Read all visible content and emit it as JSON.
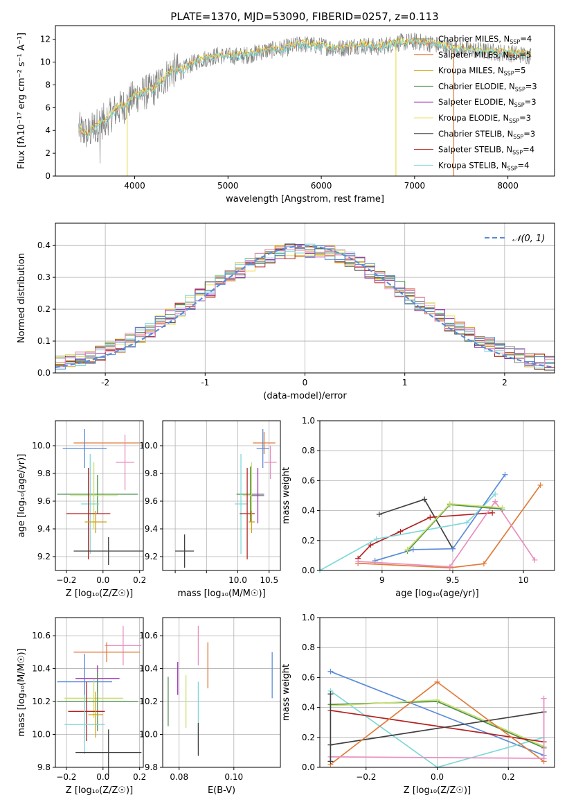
{
  "title": "PLATE=1370, MJD=53090, FIBERID=0257, z=0.113",
  "colors": {
    "chabrier_miles": "#808080",
    "salpeter_miles": "#e07b39",
    "kroupa_miles": "#d4a017",
    "chabrier_elodie": "#4f8f4f",
    "salpeter_elodie": "#9b30b0",
    "kroupa_elodie": "#e8e05a",
    "chabrier_stelib": "#404040",
    "salpeter_stelib": "#b22222",
    "kroupa_stelib": "#7fd8d8",
    "blue_model": "#5b8bd9",
    "pink_model": "#e88fc0",
    "yellowgreen_model": "#c8e06a",
    "normal_curve": "#5b8bd9"
  },
  "chart_data": [
    {
      "id": "spectrum",
      "type": "line",
      "title": "PLATE=1370, MJD=53090, FIBERID=0257, z=0.113",
      "xlabel": "wavelength [Angstrom, rest frame]",
      "ylabel": "Flux [fλ10⁻¹⁷ erg cm⁻² s⁻¹ A⁻¹]",
      "xlim": [
        3150,
        8500
      ],
      "ylim": [
        0,
        13.2
      ],
      "xticks": [
        4000,
        5000,
        6000,
        7000,
        8000
      ],
      "yticks": [
        0,
        2,
        4,
        6,
        8,
        10,
        12
      ],
      "continuum": {
        "x": [
          3400,
          3500,
          3600,
          3700,
          3800,
          3900,
          4000,
          4100,
          4200,
          4300,
          4400,
          4500,
          4600,
          4700,
          4800,
          4900,
          5000,
          5200,
          5400,
          5600,
          5800,
          6000,
          6200,
          6400,
          6600,
          6800,
          7000,
          7200,
          7400,
          7600,
          7800,
          8000,
          8200
        ],
        "y": [
          4.1,
          3.7,
          4.5,
          5.0,
          5.8,
          6.2,
          7.0,
          7.3,
          7.6,
          8.4,
          9.3,
          9.2,
          9.8,
          10.2,
          10.4,
          10.6,
          10.5,
          10.6,
          11.0,
          11.2,
          11.6,
          11.4,
          11.2,
          11.5,
          11.3,
          11.7,
          11.8,
          11.6,
          11.2,
          11.1,
          10.9,
          10.8,
          10.6
        ]
      },
      "legend": {
        "placement": "right",
        "entries": [
          {
            "name": "Chabrier MILES, N",
            "sub": "SSP",
            "tail": "=4",
            "color": "#808080"
          },
          {
            "name": "Salpeter MILES, N",
            "sub": "SSP",
            "tail": "=5",
            "color": "#e07b39"
          },
          {
            "name": "Kroupa MILES, N",
            "sub": "SSP",
            "tail": "=5",
            "color": "#d4a017"
          },
          {
            "name": "Chabrier ELODIE, N",
            "sub": "SSP",
            "tail": "=3",
            "color": "#4f8f4f"
          },
          {
            "name": "Salpeter ELODIE, N",
            "sub": "SSP",
            "tail": "=3",
            "color": "#9b30b0"
          },
          {
            "name": "Kroupa ELODIE, N",
            "sub": "SSP",
            "tail": "=3",
            "color": "#e8e05a"
          },
          {
            "name": "Chabrier STELIB, N",
            "sub": "SSP",
            "tail": "=3",
            "color": "#404040"
          },
          {
            "name": "Salpeter STELIB, N",
            "sub": "SSP",
            "tail": "=4",
            "color": "#b22222"
          },
          {
            "name": "Kroupa STELIB, N",
            "sub": "SSP",
            "tail": "=4",
            "color": "#7fd8d8"
          }
        ]
      }
    },
    {
      "id": "residuals",
      "type": "line",
      "xlabel": "(data-model)/error",
      "ylabel": "Normed distribution",
      "xlim": [
        -2.5,
        2.5
      ],
      "ylim": [
        0,
        0.47
      ],
      "xticks": [
        -2,
        -1,
        0,
        1,
        2
      ],
      "yticks": [
        0.0,
        0.1,
        0.2,
        0.3,
        0.4
      ],
      "grid": true,
      "legend": {
        "placement": "top-right",
        "entries": [
          {
            "name": "𝒩(0, 1)",
            "color": "#5b8bd9"
          }
        ]
      },
      "bin_width": 0.1
    },
    {
      "id": "age_vs_Z",
      "type": "scatter",
      "xlabel": "Z [log₁₀(Z/Z☉)]",
      "ylabel": "age  [log₁₀(age/yr)]",
      "xlim": [
        -0.26,
        0.22
      ],
      "ylim": [
        9.1,
        10.18
      ],
      "xticks": [
        -0.2,
        0.0,
        0.2
      ],
      "xticklabels": [
        "−0.2",
        "0.0",
        "0.2"
      ],
      "yticks": [
        9.2,
        9.4,
        9.6,
        9.8,
        10.0
      ],
      "grid": true,
      "points": [
        {
          "x": 0.02,
          "y": 10.02,
          "xerr": 0.18,
          "yerr": 0.0,
          "color": "#e07b39"
        },
        {
          "x": -0.1,
          "y": 9.98,
          "xerr": 0.12,
          "yerr": 0.14,
          "color": "#5b8bd9"
        },
        {
          "x": 0.12,
          "y": 9.88,
          "xerr": 0.05,
          "yerr": 0.2,
          "color": "#e88fc0"
        },
        {
          "x": -0.03,
          "y": 9.65,
          "xerr": 0.22,
          "yerr": 0.14,
          "color": "#4f8f4f"
        },
        {
          "x": -0.05,
          "y": 9.64,
          "xerr": 0.13,
          "yerr": 0.24,
          "color": "#c8e06a"
        },
        {
          "x": -0.07,
          "y": 9.58,
          "xerr": 0.05,
          "yerr": 0.36,
          "color": "#7fd8d8"
        },
        {
          "x": -0.08,
          "y": 9.51,
          "xerr": 0.12,
          "yerr": 0.33,
          "color": "#b22222"
        },
        {
          "x": -0.04,
          "y": 9.45,
          "xerr": 0.06,
          "yerr": 0.08,
          "color": "#d4a017"
        },
        {
          "x": 0.03,
          "y": 9.24,
          "xerr": 0.19,
          "yerr": 0.1,
          "color": "#404040"
        }
      ]
    },
    {
      "id": "age_vs_mass",
      "type": "scatter",
      "xlabel": "mass [log₁₀(M/M☉)]",
      "xlim": [
        8.8,
        10.68
      ],
      "ylim": [
        9.1,
        10.18
      ],
      "xticks": [
        9.0,
        9.5,
        10.0,
        10.5
      ],
      "xticklabels": [
        "",
        "",
        "10.0",
        "10.5"
      ],
      "yticks": [
        9.2,
        9.4,
        9.6,
        9.8,
        10.0
      ],
      "grid": true,
      "points": [
        {
          "x": 10.42,
          "y": 10.02,
          "xerr": 0.18,
          "yerr": 0.08,
          "color": "#e07b39"
        },
        {
          "x": 10.4,
          "y": 9.98,
          "xerr": 0.1,
          "yerr": 0.14,
          "color": "#5b8bd9"
        },
        {
          "x": 10.52,
          "y": 9.88,
          "xerr": 0.1,
          "yerr": 0.12,
          "color": "#e88fc0"
        },
        {
          "x": 10.2,
          "y": 9.65,
          "xerr": 0.22,
          "yerr": 0.2,
          "color": "#4f8f4f"
        },
        {
          "x": 10.22,
          "y": 9.64,
          "xerr": 0.14,
          "yerr": 0.24,
          "color": "#c8e06a"
        },
        {
          "x": 10.32,
          "y": 9.64,
          "xerr": 0.1,
          "yerr": 0.2,
          "color": "#9b30b0"
        },
        {
          "x": 10.05,
          "y": 9.58,
          "xerr": 0.1,
          "yerr": 0.36,
          "color": "#7fd8d8"
        },
        {
          "x": 10.15,
          "y": 9.51,
          "xerr": 0.12,
          "yerr": 0.33,
          "color": "#b22222"
        },
        {
          "x": 10.22,
          "y": 9.45,
          "xerr": 0.05,
          "yerr": 0.08,
          "color": "#d4a017"
        },
        {
          "x": 9.15,
          "y": 9.24,
          "xerr": 0.15,
          "yerr": 0.12,
          "color": "#404040"
        }
      ]
    },
    {
      "id": "massweight_vs_age",
      "type": "line",
      "xlabel": "age  [log₁₀(age/yr)]",
      "ylabel": "mass weight",
      "xlim": [
        8.56,
        10.22
      ],
      "ylim": [
        0,
        1.0
      ],
      "xticks": [
        9.0,
        9.5,
        10.0
      ],
      "yticks": [
        0.0,
        0.2,
        0.4,
        0.6,
        0.8,
        1.0
      ],
      "grid": true,
      "series": [
        {
          "x": [
            8.98,
            9.3,
            9.5
          ],
          "y": [
            0.375,
            0.475,
            0.145
          ],
          "color": "#404040"
        },
        {
          "x": [
            8.83,
            8.92,
            9.13,
            9.34,
            9.78
          ],
          "y": [
            0.08,
            0.17,
            0.26,
            0.355,
            0.385
          ],
          "color": "#b22222"
        },
        {
          "x": [
            8.56,
            8.96,
            9.6,
            9.8
          ],
          "y": [
            0.0,
            0.21,
            0.32,
            0.51
          ],
          "color": "#7fd8d8"
        },
        {
          "x": [
            8.95,
            9.22,
            9.5,
            9.87
          ],
          "y": [
            0.065,
            0.14,
            0.145,
            0.64
          ],
          "color": "#5b8bd9"
        },
        {
          "x": [
            8.83,
            9.48,
            9.72,
            10.12
          ],
          "y": [
            0.048,
            0.018,
            0.045,
            0.57
          ],
          "color": "#e07b39"
        },
        {
          "x": [
            8.83,
            9.48,
            9.8,
            10.08
          ],
          "y": [
            0.06,
            0.025,
            0.46,
            0.07
          ],
          "color": "#e88fc0"
        },
        {
          "x": [
            9.18,
            9.48,
            9.85
          ],
          "y": [
            0.13,
            0.44,
            0.41
          ],
          "color": "#4f8f4f"
        },
        {
          "x": [
            9.18,
            9.48,
            9.85
          ],
          "y": [
            0.14,
            0.445,
            0.42
          ],
          "color": "#c8e06a"
        }
      ]
    },
    {
      "id": "mass_vs_Z",
      "type": "scatter",
      "xlabel": "Z [log₁₀(Z/Z☉)]",
      "ylabel": "mass [log₁₀(M/M☉)]",
      "xlim": [
        -0.26,
        0.22
      ],
      "ylim": [
        9.8,
        10.71
      ],
      "xticks": [
        -0.2,
        0.0,
        0.2
      ],
      "xticklabels": [
        "−0.2",
        "0.0",
        "0.2"
      ],
      "yticks": [
        9.8,
        10.0,
        10.2,
        10.4,
        10.6
      ],
      "grid": true,
      "points": [
        {
          "x": 0.11,
          "y": 10.54,
          "xerr": 0.1,
          "yerr": 0.12,
          "color": "#e88fc0"
        },
        {
          "x": 0.02,
          "y": 10.5,
          "xerr": 0.18,
          "yerr": 0.06,
          "color": "#e07b39"
        },
        {
          "x": -0.1,
          "y": 10.32,
          "xerr": 0.15,
          "yerr": 0.17,
          "color": "#5b8bd9"
        },
        {
          "x": -0.03,
          "y": 10.34,
          "xerr": 0.12,
          "yerr": 0.08,
          "color": "#9b30b0"
        },
        {
          "x": -0.05,
          "y": 10.22,
          "xerr": 0.16,
          "yerr": 0.12,
          "color": "#c8e06a"
        },
        {
          "x": -0.03,
          "y": 10.2,
          "xerr": 0.22,
          "yerr": 0.18,
          "color": "#4f8f4f"
        },
        {
          "x": -0.09,
          "y": 10.14,
          "xerr": 0.1,
          "yerr": 0.18,
          "color": "#b22222"
        },
        {
          "x": -0.1,
          "y": 10.06,
          "xerr": 0.11,
          "yerr": 0.18,
          "color": "#7fd8d8"
        },
        {
          "x": -0.04,
          "y": 10.12,
          "xerr": 0.04,
          "yerr": 0.14,
          "color": "#d4a017"
        },
        {
          "x": 0.03,
          "y": 9.89,
          "xerr": 0.18,
          "yerr": 0.14,
          "color": "#404040"
        }
      ]
    },
    {
      "id": "mass_vs_ebv",
      "type": "scatter",
      "xlabel": "E(B-V)",
      "xlim": [
        0.074,
        0.117
      ],
      "ylim": [
        9.8,
        10.71
      ],
      "xticks": [
        0.08,
        0.1
      ],
      "xticklabels": [
        "0.08",
        "0.10"
      ],
      "yticks": [
        9.8,
        10.0,
        10.2,
        10.4,
        10.6
      ],
      "grid": true,
      "points": [
        {
          "x": 0.076,
          "y": 10.2,
          "xerr": 0.0,
          "yerr": 0.15,
          "color": "#4f8f4f"
        },
        {
          "x": 0.0795,
          "y": 10.34,
          "xerr": 0.0,
          "yerr": 0.1,
          "color": "#9b30b0"
        },
        {
          "x": 0.0825,
          "y": 10.2,
          "xerr": 0.0,
          "yerr": 0.16,
          "color": "#c8e06a"
        },
        {
          "x": 0.087,
          "y": 10.54,
          "xerr": 0.0,
          "yerr": 0.12,
          "color": "#e88fc0"
        },
        {
          "x": 0.087,
          "y": 10.12,
          "xerr": 0.0,
          "yerr": 0.2,
          "color": "#7fd8d8"
        },
        {
          "x": 0.087,
          "y": 9.97,
          "xerr": 0.0,
          "yerr": 0.1,
          "color": "#404040"
        },
        {
          "x": 0.0905,
          "y": 10.42,
          "xerr": 0.0,
          "yerr": 0.14,
          "color": "#e07b39"
        },
        {
          "x": 0.114,
          "y": 10.36,
          "xerr": 0.0,
          "yerr": 0.14,
          "color": "#5b8bd9"
        }
      ]
    },
    {
      "id": "massweight_vs_Z",
      "type": "line",
      "xlabel": "Z [log₁₀(Z/Z☉)]",
      "ylabel": "mass weight",
      "xlim": [
        -0.33,
        0.33
      ],
      "ylim": [
        0,
        1.0
      ],
      "xticks": [
        -0.2,
        0.0,
        0.2
      ],
      "xticklabels": [
        "−0.2",
        "0.0",
        "0.2"
      ],
      "yticks": [
        0.0,
        0.2,
        0.4,
        0.6,
        0.8,
        1.0
      ],
      "grid": true,
      "series": [
        {
          "x": [
            -0.3,
            0.3
          ],
          "y": [
            0.64,
            0.08
          ],
          "color": "#5b8bd9"
        },
        {
          "x": [
            -0.3,
            0.0,
            0.3
          ],
          "y": [
            0.51,
            0.0,
            0.2
          ],
          "color": "#7fd8d8"
        },
        {
          "x": [
            -0.3,
            0.0,
            0.3
          ],
          "y": [
            0.42,
            0.44,
            0.13
          ],
          "color": "#4f8f4f"
        },
        {
          "x": [
            -0.3,
            0.0,
            0.3
          ],
          "y": [
            0.41,
            0.45,
            0.14
          ],
          "color": "#c8e06a"
        },
        {
          "x": [
            -0.3,
            0.3
          ],
          "y": [
            0.38,
            0.17
          ],
          "color": "#b22222"
        },
        {
          "x": [
            -0.3,
            0.3
          ],
          "y": [
            0.15,
            0.37
          ],
          "color": "#404040"
        },
        {
          "x": [
            -0.3,
            0.0,
            0.3
          ],
          "y": [
            0.02,
            0.57,
            0.04
          ],
          "color": "#e07b39"
        },
        {
          "x": [
            -0.3,
            0.3
          ],
          "y": [
            0.07,
            0.06
          ],
          "color": "#e88fc0"
        },
        {
          "x": [
            0.3,
            0.3
          ],
          "y": [
            0.06,
            0.46
          ],
          "color": "#e88fc0"
        },
        {
          "x": [
            -0.3,
            -0.3
          ],
          "y": [
            0.04,
            0.49
          ],
          "color": "#404040"
        }
      ]
    }
  ]
}
